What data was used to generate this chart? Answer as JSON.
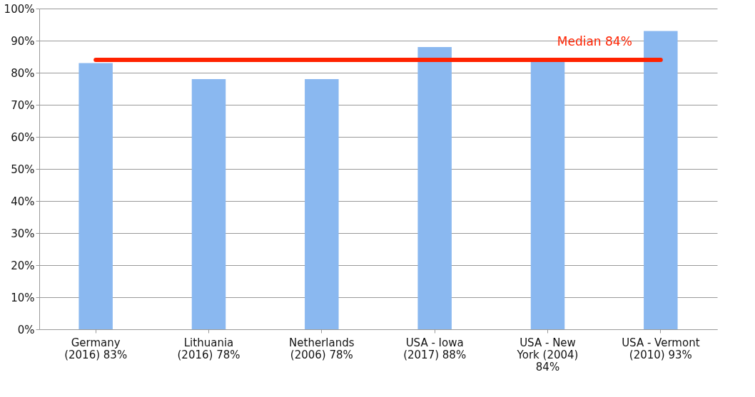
{
  "chart_data": {
    "type": "bar",
    "categories": [
      "Germany (2016) 83%",
      "Lithuania (2016) 78%",
      "Netherlands (2006) 78%",
      "USA - Iowa (2017) 88%",
      "USA - New York (2004) 84%",
      "USA - Vermont (2010) 93%"
    ],
    "values": [
      83,
      78,
      78,
      88,
      84,
      93
    ],
    "color": "#8ab8f0",
    "ylim": [
      0,
      100
    ],
    "yticks": [
      {
        "value": 0,
        "label": "0%"
      },
      {
        "value": 10,
        "label": "10%"
      },
      {
        "value": 20,
        "label": "20%"
      },
      {
        "value": 30,
        "label": "30%"
      },
      {
        "value": 40,
        "label": "40%"
      },
      {
        "value": 50,
        "label": "50%"
      },
      {
        "value": 60,
        "label": "60%"
      },
      {
        "value": 70,
        "label": "70%"
      },
      {
        "value": 80,
        "label": "80%"
      },
      {
        "value": 90,
        "label": "90%"
      },
      {
        "value": 100,
        "label": "100%"
      }
    ],
    "ref_lines": [
      {
        "axis": "y",
        "value": 84,
        "label": "Median 84%",
        "color": "#ff2200"
      }
    ],
    "grid": "y"
  }
}
